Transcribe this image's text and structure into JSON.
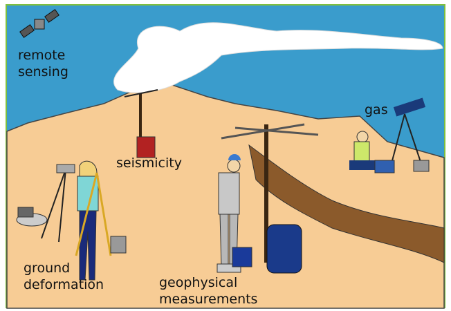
{
  "labels": [
    {
      "lines": [
        "remote",
        "sensing"
      ]
    },
    {
      "lines": [
        "seismicity"
      ]
    },
    {
      "lines": [
        "gas"
      ]
    },
    {
      "lines": [
        "ground",
        "deformation"
      ]
    },
    {
      "lines": [
        "geophysical",
        "measurements"
      ]
    }
  ]
}
